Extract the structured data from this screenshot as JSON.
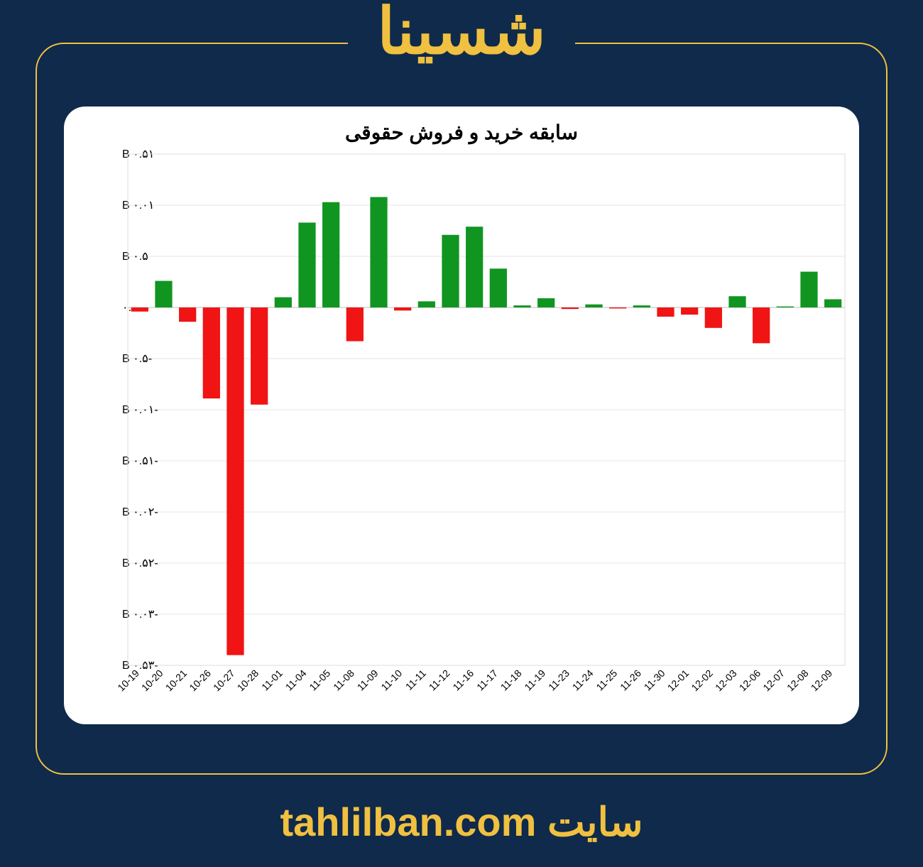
{
  "page": {
    "background_color": "#0f2a4a",
    "accent_color": "#f0c040",
    "header_title": "شسینا",
    "footer_prefix": "سایت ",
    "footer_site": "tahlilban.com",
    "frame_border_color": "#f0c040"
  },
  "chart": {
    "type": "bar",
    "title": "سابقه خرید و فروش حقوقی",
    "title_fontsize": 28,
    "background_color": "#ffffff",
    "grid_color": "#e5e5e5",
    "positive_color": "#119521",
    "negative_color": "#f01414",
    "bar_width": 0.72,
    "ylim": [
      -35,
      15
    ],
    "ytick_step": 5,
    "y_suffix": " B",
    "ytick_labels": [
      "-۳۵.۰ B",
      "-۳۰.۰ B",
      "-۲۵.۰ B",
      "-۲۰.۰ B",
      "-۱۵.۰ B",
      "-۱۰.۰ B",
      "-۵.۰ B",
      "۰.۰",
      "۵.۰ B",
      "۱۰.۰ B",
      "۱۵.۰ B"
    ],
    "categories": [
      "10-19",
      "10-20",
      "10-21",
      "10-26",
      "10-27",
      "10-28",
      "11-01",
      "11-04",
      "11-05",
      "11-08",
      "11-09",
      "11-10",
      "11-11",
      "11-12",
      "11-16",
      "11-17",
      "11-18",
      "11-19",
      "11-23",
      "11-24",
      "11-25",
      "11-26",
      "11-30",
      "12-01",
      "12-02",
      "12-03",
      "12-06",
      "12-07",
      "12-08",
      "12-09"
    ],
    "values": [
      -0.4,
      2.6,
      -1.4,
      -8.9,
      -34.0,
      -9.5,
      1.0,
      8.3,
      10.3,
      -3.3,
      10.8,
      -0.3,
      0.6,
      7.1,
      7.9,
      3.8,
      0.2,
      0.9,
      -0.15,
      0.3,
      -0.1,
      0.2,
      -0.9,
      -0.7,
      -2.0,
      1.1,
      -3.5,
      0.1,
      3.5,
      0.8
    ],
    "xtick_rotation": -45,
    "xtick_fontsize": 14,
    "ytick_fontsize": 16
  }
}
